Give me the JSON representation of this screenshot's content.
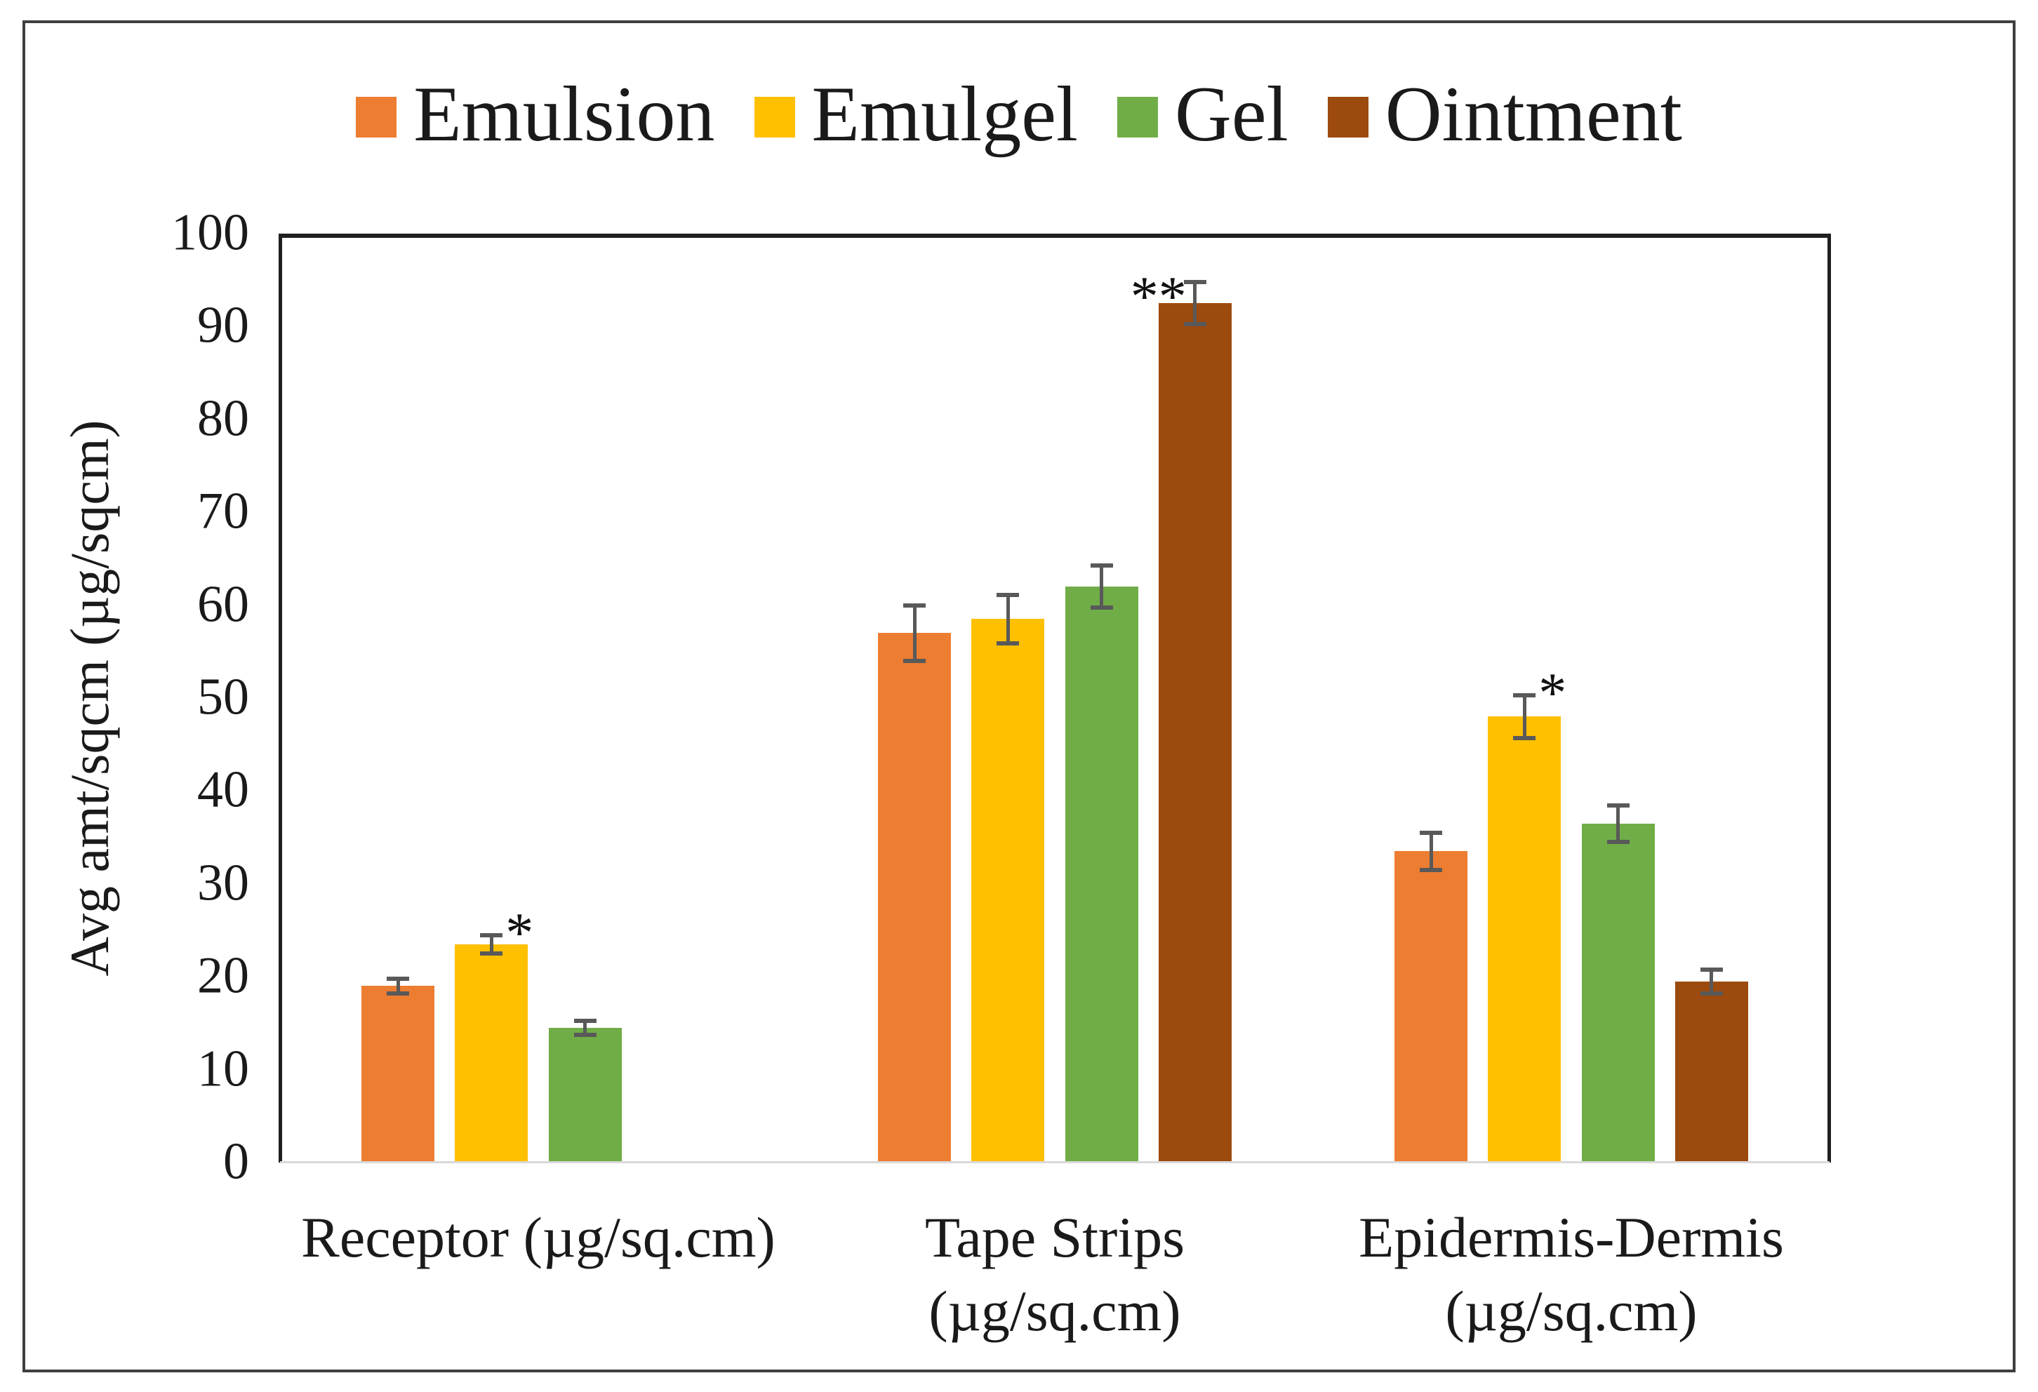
{
  "figure": {
    "background": "#ffffff",
    "border_color": "#3f3f3f"
  },
  "chart_data": {
    "type": "bar",
    "title": "",
    "ylabel": "Avg amt/sqcm (µg/sqcm)",
    "xlabel": "",
    "ylim": [
      0,
      100
    ],
    "ytick_step": 10,
    "grid": false,
    "legend_position": "top",
    "axis_color": "#1f1f1f",
    "baseline_color": "#d9d9d9",
    "error_bar_color": "#595959",
    "text_color": "#1a1a1a",
    "categories": [
      "Receptor (µg/sq.cm)",
      "Tape Strips (µg/sq.cm)",
      "Epidermis-Dermis (µg/sq.cm)"
    ],
    "category_lines": [
      [
        "Receptor (µg/sq.cm)"
      ],
      [
        "Tape Strips",
        "(µg/sq.cm)"
      ],
      [
        "Epidermis-Dermis",
        "(µg/sq.cm)"
      ]
    ],
    "series": [
      {
        "name": "Emulsion",
        "color": "#ED7D31",
        "values": [
          19,
          57,
          33.5
        ],
        "errors": [
          1,
          3.2,
          2.2
        ]
      },
      {
        "name": "Emulgel",
        "color": "#FFC000",
        "values": [
          23.5,
          58.5,
          48
        ],
        "errors": [
          1.2,
          2.8,
          2.5
        ]
      },
      {
        "name": "Gel",
        "color": "#70AD47",
        "values": [
          14.5,
          62,
          36.5
        ],
        "errors": [
          1,
          2.5,
          2.2
        ]
      },
      {
        "name": "Ointment",
        "color": "#9C4A0E",
        "values": [
          null,
          92.5,
          19.5
        ],
        "errors": [
          null,
          2.5,
          1.5
        ]
      }
    ],
    "annotations": [
      {
        "category_index": 0,
        "series_index": 1,
        "text": "*",
        "placement": "right-of-cap"
      },
      {
        "category_index": 1,
        "series_index": 3,
        "text": "**",
        "placement": "left-of-cap"
      },
      {
        "category_index": 2,
        "series_index": 1,
        "text": "*",
        "placement": "right-of-cap"
      }
    ]
  }
}
